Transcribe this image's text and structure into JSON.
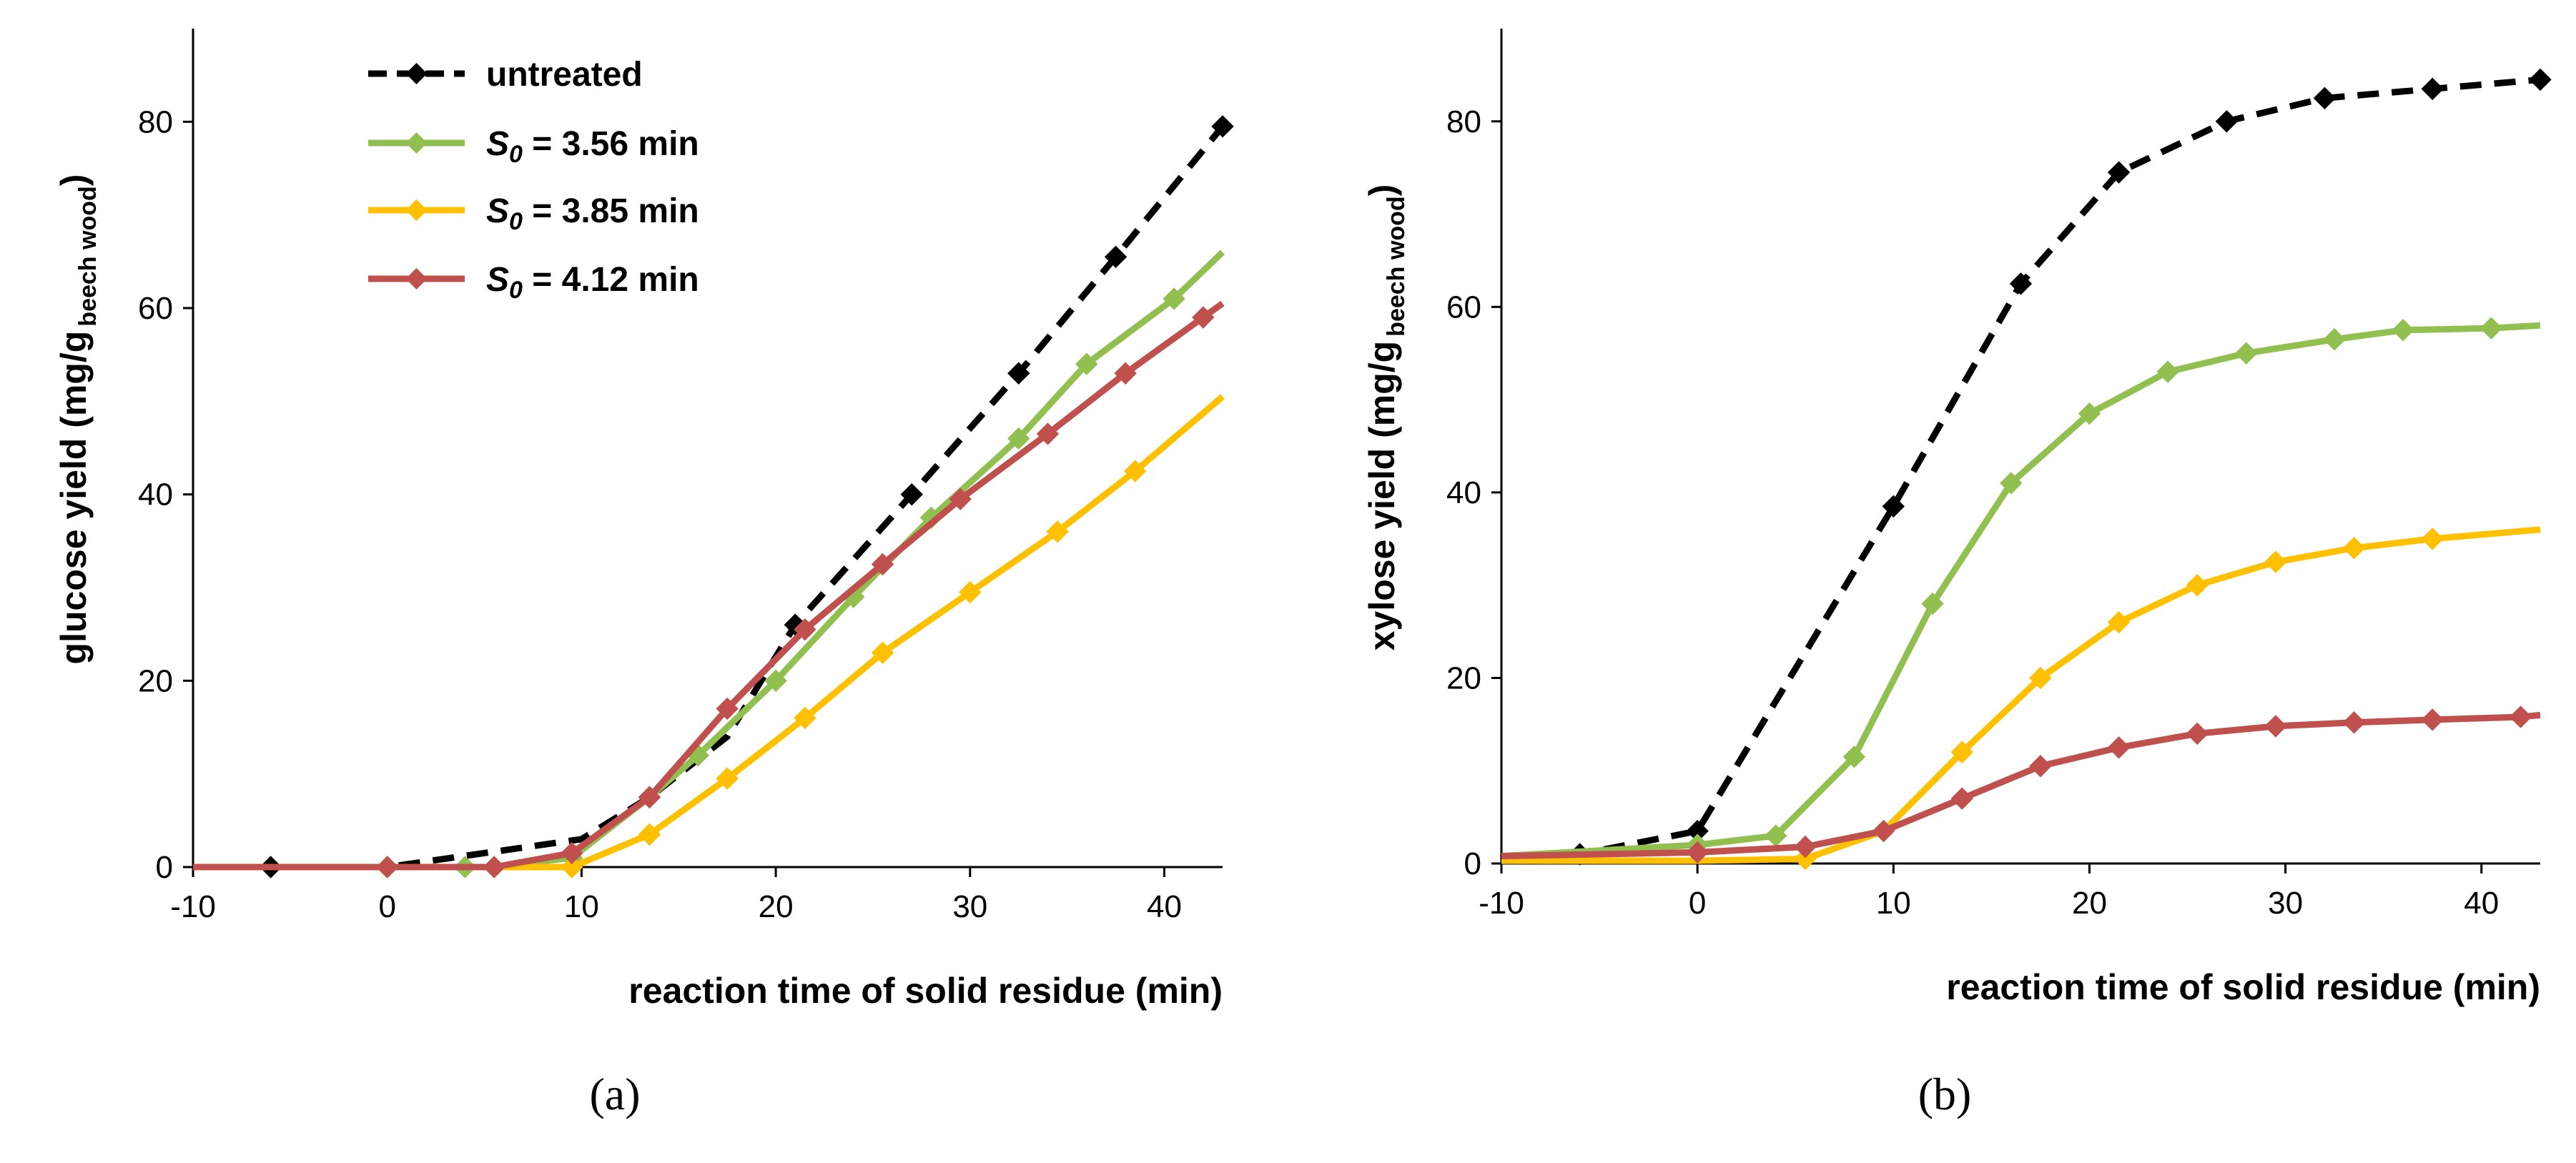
{
  "colors": {
    "untreated": "#000000",
    "s356": "#92C050",
    "s385": "#FFC000",
    "s412": "#C0504D"
  },
  "legend": [
    {
      "key": "untreated",
      "prefix": "",
      "sub": "",
      "text": "untreated",
      "dashed": true
    },
    {
      "key": "s356",
      "prefix": "S",
      "sub": "0",
      "text": " = 3.56 min",
      "dashed": false
    },
    {
      "key": "s385",
      "prefix": "S",
      "sub": "0",
      "text": " = 3.85 min",
      "dashed": false
    },
    {
      "key": "s412",
      "prefix": "S",
      "sub": "0",
      "text": " = 4.12 min",
      "dashed": false
    }
  ],
  "chart_data": [
    {
      "type": "line",
      "panel_label": "(a)",
      "xlabel": "reaction time of solid residue  (min)",
      "ylabel_main": "glucose yield  (mg/g",
      "ylabel_sub": "beech wood",
      "ylabel_close": ")",
      "xlim": [
        -10,
        43
      ],
      "ylim": [
        0,
        90
      ],
      "xticks": [
        -10,
        0,
        10,
        20,
        30,
        40
      ],
      "yticks": [
        0,
        20,
        40,
        60,
        80
      ],
      "series": [
        {
          "key": "untreated",
          "name": "untreated",
          "dashed": true,
          "x": [
            -10,
            -6,
            0,
            10,
            13.5,
            17.5,
            21,
            27,
            32.5,
            37.5,
            43
          ],
          "y": [
            0,
            0,
            0,
            3,
            7.5,
            14,
            26,
            40,
            53,
            65.5,
            79.5
          ],
          "markers": [
            -6,
            0,
            13.5,
            21,
            27,
            32.5,
            37.5,
            43
          ]
        },
        {
          "key": "s356",
          "name": "S0 = 3.56 min",
          "dashed": false,
          "x": [
            -10,
            0,
            4,
            5.5,
            9.5,
            13.5,
            16,
            20,
            24,
            28,
            32.5,
            36,
            40.5,
            43
          ],
          "y": [
            0,
            0,
            0,
            0,
            1,
            7.5,
            12,
            20,
            29,
            37.5,
            46,
            54,
            61,
            66
          ],
          "markers": [
            0,
            4,
            9.5,
            13.5,
            16,
            20,
            24,
            28,
            32.5,
            36,
            40.5
          ]
        },
        {
          "key": "s385",
          "name": "S0 = 3.85 min",
          "dashed": false,
          "x": [
            -10,
            0,
            6,
            9.5,
            13.5,
            17.5,
            21.5,
            25.5,
            30,
            34.5,
            38.5,
            43
          ],
          "y": [
            0,
            0,
            0,
            0,
            3.5,
            9.5,
            16,
            23,
            29.5,
            36,
            42.5,
            50.5
          ],
          "markers": [
            0,
            9.5,
            13.5,
            17.5,
            21.5,
            25.5,
            30,
            34.5,
            38.5
          ]
        },
        {
          "key": "s412",
          "name": "S0 = 4.12 min",
          "dashed": false,
          "x": [
            -10,
            0,
            5.5,
            9.5,
            13.5,
            17.5,
            21.5,
            25.5,
            29.5,
            34,
            38,
            42,
            43
          ],
          "y": [
            0,
            0,
            0,
            1.5,
            7.5,
            17,
            25.5,
            32.5,
            39.5,
            46.5,
            53,
            59,
            60.5
          ],
          "markers": [
            0,
            5.5,
            9.5,
            13.5,
            17.5,
            21.5,
            25.5,
            29.5,
            34,
            38,
            42
          ]
        }
      ]
    },
    {
      "type": "line",
      "panel_label": "(b)",
      "xlabel": "reaction time of solid residue  (min)",
      "ylabel_main": "xylose yield  (mg/g",
      "ylabel_sub": "beech wood",
      "ylabel_close": ")",
      "xlim": [
        -10,
        43
      ],
      "ylim": [
        0,
        90
      ],
      "xticks": [
        -10,
        0,
        10,
        20,
        30,
        40
      ],
      "yticks": [
        0,
        20,
        40,
        60,
        80
      ],
      "series": [
        {
          "key": "untreated",
          "name": "untreated",
          "dashed": true,
          "x": [
            -10,
            -6,
            0,
            10,
            16.5,
            21.5,
            27,
            32,
            37.5,
            43
          ],
          "y": [
            0.8,
            1,
            3.5,
            38.5,
            62.5,
            74.5,
            80,
            82.5,
            83.5,
            84.5
          ],
          "markers": [
            -6,
            0,
            10,
            16.5,
            21.5,
            27,
            32,
            37.5,
            43
          ]
        },
        {
          "key": "s356",
          "name": "S0 = 3.56 min",
          "dashed": false,
          "x": [
            -10,
            0,
            4,
            8,
            12,
            16,
            20,
            24,
            28,
            32.5,
            36,
            40.5,
            43
          ],
          "y": [
            0.8,
            2,
            3,
            11.5,
            28,
            41,
            48.5,
            53,
            55,
            56.5,
            57.5,
            57.7,
            58
          ],
          "markers": [
            0,
            4,
            8,
            12,
            16,
            20,
            24,
            28,
            32.5,
            36,
            40.5
          ]
        },
        {
          "key": "s385",
          "name": "S0 = 3.85 min",
          "dashed": false,
          "x": [
            -10,
            0,
            5.5,
            9.5,
            13.5,
            17.5,
            21.5,
            25.5,
            29.5,
            33.5,
            37.5,
            43
          ],
          "y": [
            0.3,
            0.3,
            0.5,
            3.5,
            12,
            20,
            26,
            30,
            32.5,
            34,
            35,
            36
          ],
          "markers": [
            5.5,
            9.5,
            13.5,
            17.5,
            21.5,
            25.5,
            29.5,
            33.5,
            37.5
          ]
        },
        {
          "key": "s412",
          "name": "S0 = 4.12 min",
          "dashed": false,
          "x": [
            -10,
            0,
            5.5,
            9.5,
            13.5,
            17.5,
            21.5,
            25.5,
            29.5,
            33.5,
            37.5,
            42,
            43
          ],
          "y": [
            0.8,
            1.2,
            1.8,
            3.5,
            7,
            10.5,
            12.5,
            14,
            14.8,
            15.2,
            15.5,
            15.8,
            16
          ],
          "markers": [
            0,
            5.5,
            9.5,
            13.5,
            17.5,
            21.5,
            25.5,
            29.5,
            33.5,
            37.5,
            42
          ]
        }
      ]
    }
  ]
}
